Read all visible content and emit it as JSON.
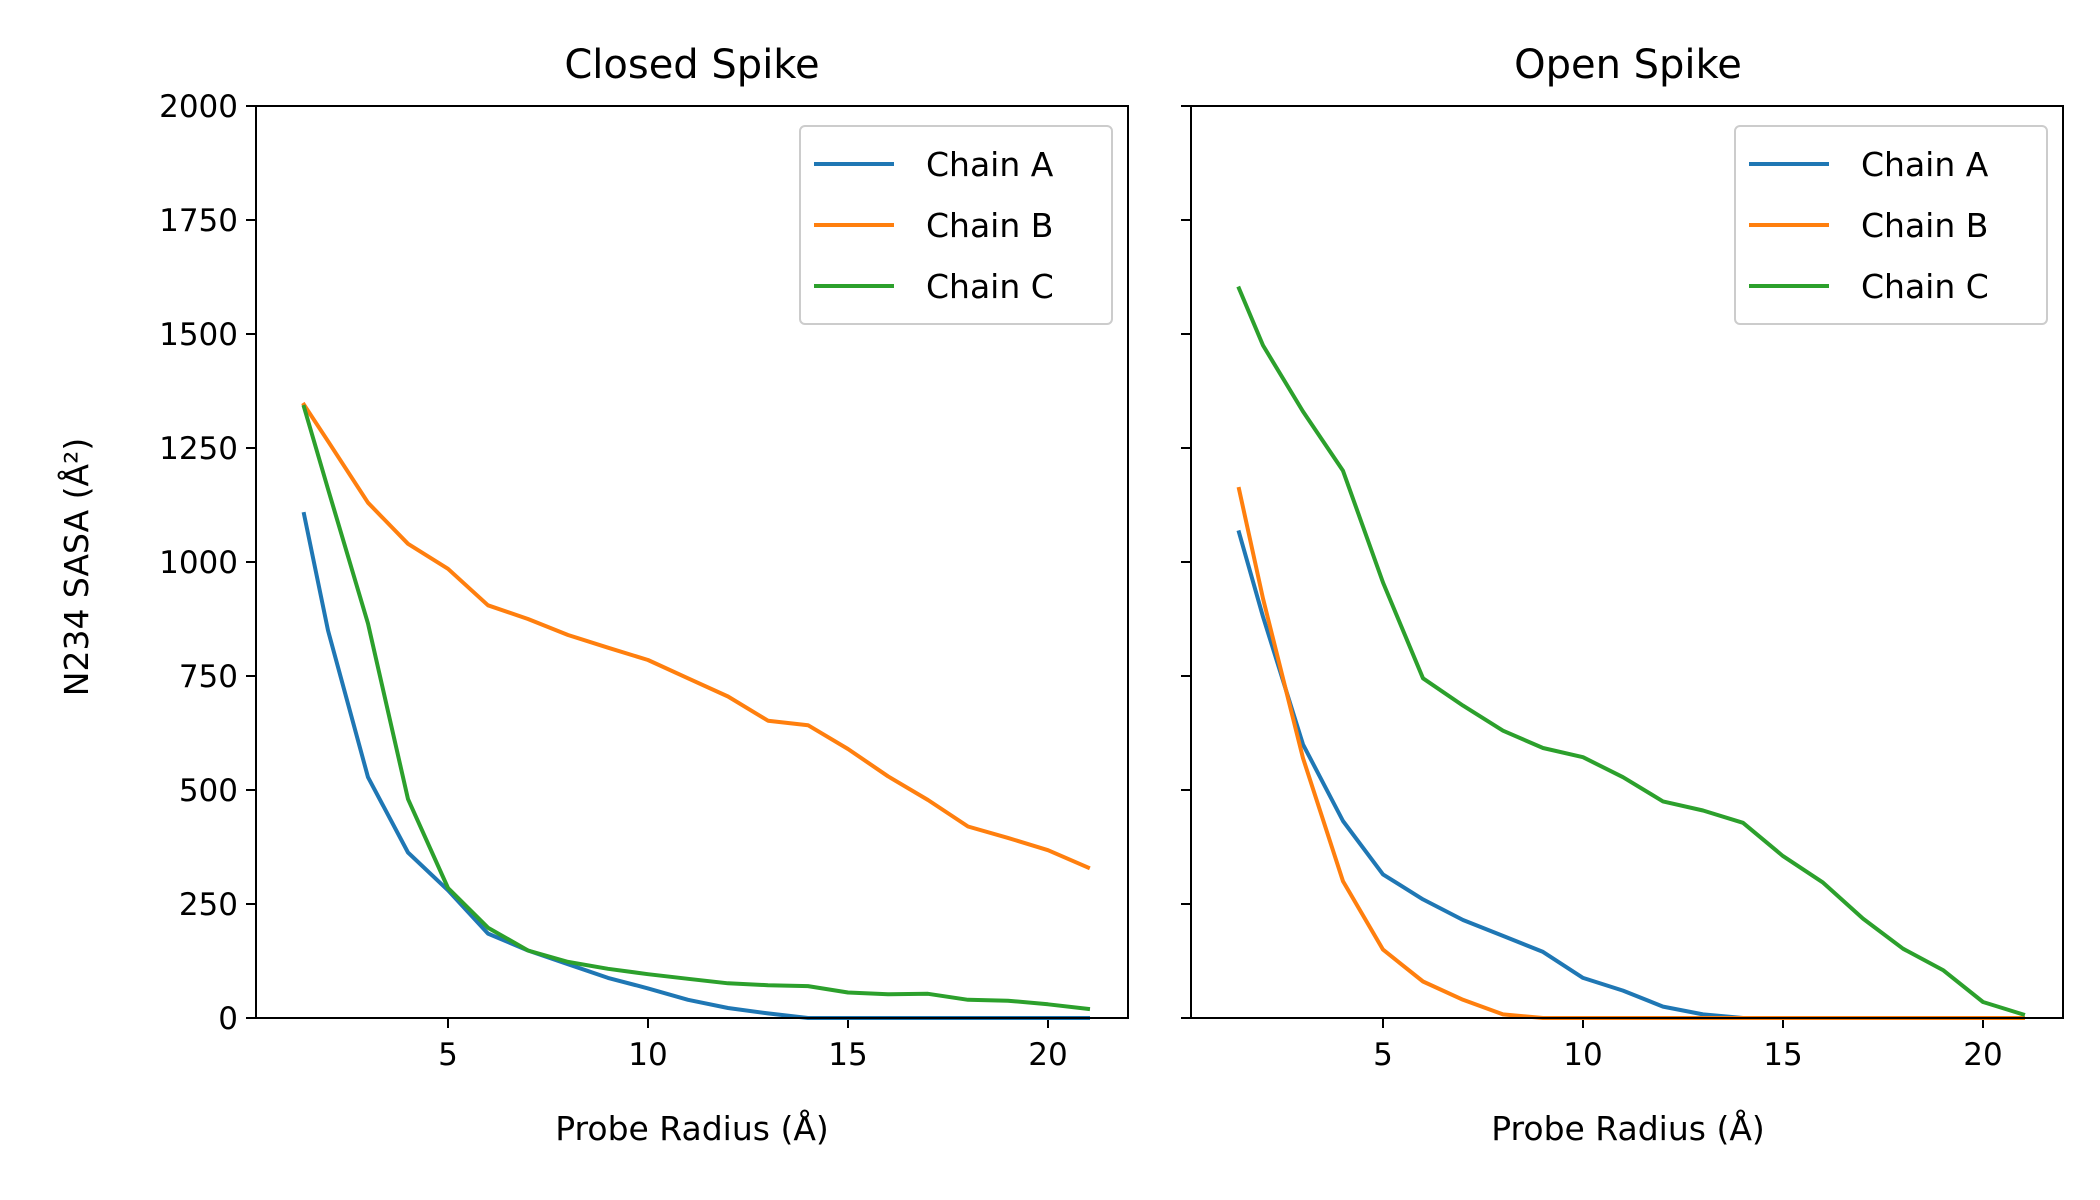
{
  "colors": {
    "chain_a": "#1f77b4",
    "chain_b": "#ff7f0e",
    "chain_c": "#2ca02c"
  },
  "chart_data": [
    {
      "type": "line",
      "title": "Closed Spike",
      "xlabel": "Probe Radius (Å)",
      "ylabel": "N234 SASA (Å²)",
      "xlim": [
        0.2,
        22
      ],
      "ylim": [
        0,
        2000
      ],
      "xticks": [
        "5",
        "10",
        "15",
        "20"
      ],
      "yticks": [
        "0",
        "250",
        "500",
        "750",
        "1000",
        "1250",
        "1500",
        "1750",
        "2000"
      ],
      "legend_position": "top-right",
      "grid": false,
      "x": [
        1.4,
        2,
        3,
        4,
        5,
        6,
        7,
        8,
        9,
        10,
        11,
        12,
        13,
        14,
        15,
        16,
        17,
        18,
        19,
        20,
        21
      ],
      "series": [
        {
          "name": "Chain A",
          "color": "#1f77b4",
          "values": [
            1105,
            850,
            528,
            363,
            280,
            185,
            148,
            118,
            88,
            65,
            40,
            22,
            10,
            0,
            0,
            0,
            0,
            0,
            0,
            0,
            0
          ]
        },
        {
          "name": "Chain B",
          "color": "#ff7f0e",
          "values": [
            1345,
            1265,
            1130,
            1040,
            985,
            905,
            875,
            840,
            812,
            785,
            745,
            705,
            652,
            642,
            590,
            530,
            478,
            420,
            395,
            368,
            330
          ]
        },
        {
          "name": "Chain C",
          "color": "#2ca02c",
          "values": [
            1340,
            1160,
            865,
            480,
            285,
            198,
            148,
            123,
            108,
            96,
            86,
            76,
            72,
            70,
            56,
            52,
            53,
            40,
            38,
            30,
            20
          ]
        }
      ]
    },
    {
      "type": "line",
      "title": "Open Spike",
      "xlabel": "Probe Radius (Å)",
      "xlim": [
        0.2,
        22
      ],
      "ylim": [
        0,
        2000
      ],
      "xticks": [
        "5",
        "10",
        "15",
        "20"
      ],
      "legend_position": "top-right",
      "grid": false,
      "x": [
        1.4,
        2,
        3,
        4,
        5,
        6,
        7,
        8,
        9,
        10,
        11,
        12,
        13,
        14,
        15,
        16,
        17,
        18,
        19,
        20,
        21
      ],
      "series": [
        {
          "name": "Chain A",
          "color": "#1f77b4",
          "values": [
            1065,
            880,
            600,
            432,
            315,
            260,
            215,
            180,
            145,
            88,
            60,
            25,
            8,
            0,
            0,
            0,
            0,
            0,
            0,
            0,
            0
          ]
        },
        {
          "name": "Chain B",
          "color": "#ff7f0e",
          "values": [
            1160,
            920,
            570,
            300,
            150,
            80,
            40,
            8,
            0,
            0,
            0,
            0,
            0,
            0,
            0,
            0,
            0,
            0,
            0,
            0,
            0
          ]
        },
        {
          "name": "Chain C",
          "color": "#2ca02c",
          "values": [
            1600,
            1475,
            1330,
            1200,
            955,
            745,
            685,
            630,
            592,
            572,
            528,
            475,
            455,
            428,
            355,
            297,
            218,
            152,
            105,
            35,
            8
          ]
        }
      ]
    }
  ]
}
